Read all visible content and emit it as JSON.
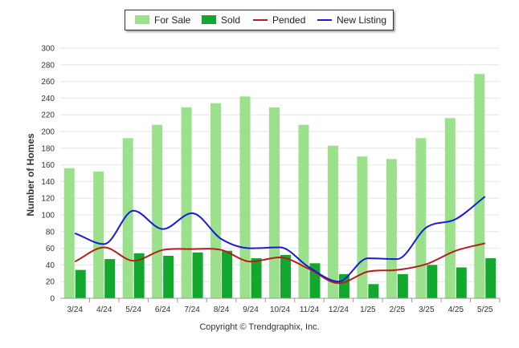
{
  "chart_data": {
    "type": "bar",
    "ylabel": "Number of Homes",
    "xlabel": "",
    "ylim": [
      0,
      300
    ],
    "yticks": [
      0,
      20,
      40,
      60,
      80,
      100,
      120,
      140,
      160,
      180,
      200,
      220,
      240,
      260,
      280,
      300
    ],
    "grid": true,
    "legend_position": "top-center",
    "categories": [
      "3/24",
      "4/24",
      "5/24",
      "6/24",
      "7/24",
      "8/24",
      "9/24",
      "10/24",
      "11/24",
      "12/24",
      "1/25",
      "2/25",
      "3/25",
      "4/25",
      "5/25"
    ],
    "series": [
      {
        "name": "For Sale",
        "kind": "bar",
        "color": "#9be08a",
        "values": [
          156,
          152,
          192,
          208,
          229,
          234,
          242,
          229,
          208,
          183,
          170,
          167,
          192,
          216,
          269
        ]
      },
      {
        "name": "Sold",
        "kind": "bar",
        "color": "#12a82e",
        "values": [
          34,
          47,
          54,
          51,
          55,
          57,
          48,
          52,
          42,
          29,
          17,
          29,
          40,
          37,
          48
        ]
      },
      {
        "name": "Pended",
        "kind": "line",
        "color": "#b51d1d",
        "values": [
          44,
          61,
          45,
          58,
          59,
          58,
          44,
          49,
          35,
          18,
          32,
          34,
          41,
          57,
          66
        ]
      },
      {
        "name": "New Listing",
        "kind": "line",
        "color": "#1a1adb",
        "values": [
          78,
          65,
          105,
          83,
          102,
          71,
          60,
          61,
          37,
          20,
          48,
          47,
          85,
          95,
          122
        ]
      }
    ]
  },
  "footer": {
    "copyright": "Copyright © Trendgraphix, Inc."
  }
}
